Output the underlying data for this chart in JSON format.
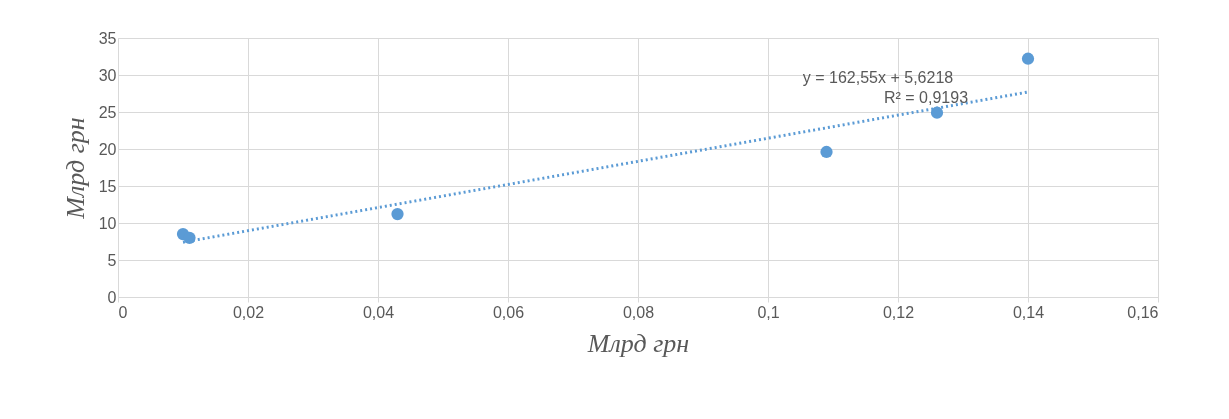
{
  "chart_data": {
    "type": "scatter",
    "xlabel": "Млрд грн",
    "ylabel": "Млрд грн",
    "xlim": [
      0,
      0.16
    ],
    "ylim": [
      0,
      35
    ],
    "xticks": [
      0,
      {
        "value": 0.02,
        "label": "0,02"
      },
      {
        "value": 0.04,
        "label": "0,04"
      },
      {
        "value": 0.06,
        "label": "0,06"
      },
      {
        "value": 0.08,
        "label": "0,08"
      },
      {
        "value": 0.1,
        "label": "0,1"
      },
      {
        "value": 0.12,
        "label": "0,12"
      },
      {
        "value": 0.14,
        "label": "0,14"
      },
      {
        "value": 0.16,
        "label": "0,16"
      }
    ],
    "yticks": [
      0,
      5,
      10,
      15,
      20,
      25,
      30,
      35
    ],
    "grid": true,
    "series": [
      {
        "type": "scatter",
        "marker": "circle",
        "color": "#5b9bd5",
        "x": [
          0.01,
          0.011,
          0.043,
          0.109,
          0.126,
          0.14
        ],
        "values": [
          8.5,
          8.0,
          11.2,
          19.6,
          24.9,
          32.2
        ]
      },
      {
        "type": "line",
        "color": "#5b9bd5",
        "line_style": "dotted",
        "x": [
          0.01,
          0.14
        ],
        "values": [
          7.4,
          27.7
        ]
      }
    ],
    "annotations": [
      "y = 162,55x + 5,6218",
      "R² = 0,9193"
    ]
  }
}
